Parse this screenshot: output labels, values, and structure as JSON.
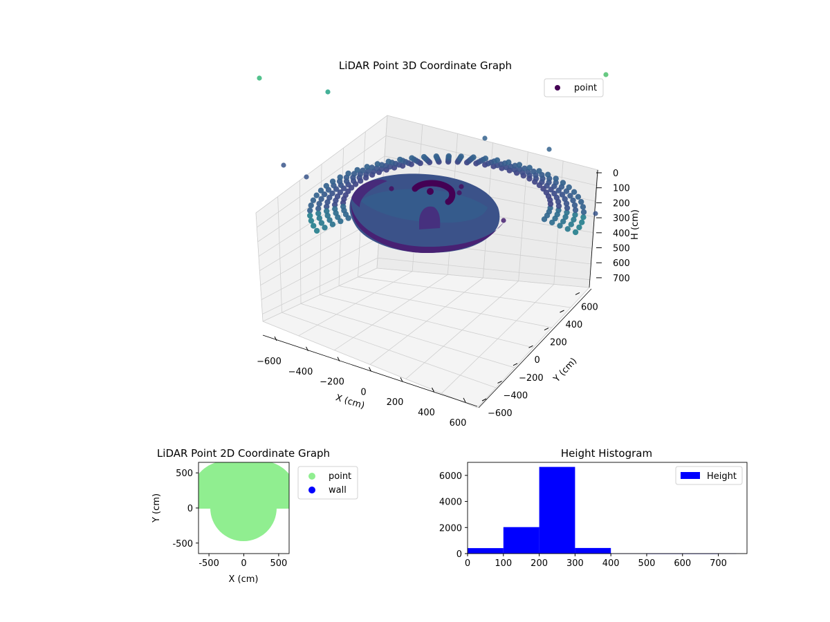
{
  "chart_data": [
    {
      "type": "scatter",
      "projection": "3d",
      "title": "LiDAR Point 3D Coordinate Graph",
      "xlabel": "X (cm)",
      "ylabel": "Y (cm)",
      "zlabel": "H (cm)",
      "xlim": [
        -650,
        650
      ],
      "ylim": [
        -650,
        650
      ],
      "zlim": [
        0,
        750
      ],
      "z_inverted": true,
      "xticks": [
        "−600",
        "−400",
        "−200",
        "0",
        "200",
        "400",
        "600"
      ],
      "yticks": [
        "−600",
        "−400",
        "−200",
        "0",
        "200",
        "400",
        "600"
      ],
      "zticks": [
        "0",
        "100",
        "200",
        "300",
        "400",
        "500",
        "600",
        "700"
      ],
      "grid": true,
      "colormap": "viridis (by height)",
      "legend": {
        "position": "top-right",
        "entries": [
          {
            "label": "point",
            "color": "#440154"
          }
        ]
      },
      "shapes": {
        "outer_ring": {
          "radius": 600,
          "height_range": [
            180,
            300
          ],
          "ring_count": 5,
          "angle_range_deg": [
            -20,
            200
          ]
        },
        "bowl_surface": {
          "radius": 430,
          "height_range": [
            230,
            280
          ]
        },
        "center_arc": {
          "radius": 80,
          "height": 40
        }
      },
      "outliers": [
        {
          "x": -450,
          "y": 550,
          "h": 700
        },
        {
          "x": -250,
          "y": 600,
          "h": 650
        },
        {
          "x": 400,
          "y": 600,
          "h": 700
        },
        {
          "x": 480,
          "y": 300,
          "h": 720
        },
        {
          "x": -620,
          "y": 200,
          "h": 450
        },
        {
          "x": -520,
          "y": 150,
          "h": 400
        },
        {
          "x": 350,
          "y": 550,
          "h": 450
        },
        {
          "x": 500,
          "y": 400,
          "h": 450
        },
        {
          "x": 600,
          "y": -200,
          "h": 300
        },
        {
          "x": 230,
          "y": -200,
          "h": 250
        }
      ]
    },
    {
      "type": "scatter",
      "title": "LiDAR Point 2D Coordinate Graph",
      "xlabel": "X (cm)",
      "ylabel": "Y (cm)",
      "xlim": [
        -650,
        650
      ],
      "ylim": [
        -650,
        650
      ],
      "xticks": [
        -500,
        0,
        500
      ],
      "yticks": [
        -500,
        0,
        500
      ],
      "legend": {
        "position": "outside-right",
        "entries": [
          {
            "label": "point",
            "color": "#90ee90"
          },
          {
            "label": "wall",
            "color": "#0000ff"
          }
        ]
      },
      "point_region": {
        "top_rect_y": [
          0,
          650
        ],
        "top_rect_x": [
          -650,
          650
        ],
        "circle_center": [
          0,
          0
        ],
        "circle_radius": 480
      }
    },
    {
      "type": "bar",
      "subtype": "histogram",
      "title": "Height Histogram",
      "xlabel": "",
      "ylabel": "",
      "bins": [
        [
          0,
          100
        ],
        [
          100,
          200
        ],
        [
          200,
          300
        ],
        [
          300,
          400
        ],
        [
          400,
          500
        ],
        [
          500,
          600
        ],
        [
          600,
          700
        ],
        [
          700,
          750
        ]
      ],
      "values": [
        420,
        2030,
        6650,
        430,
        3,
        2,
        2,
        3
      ],
      "series": [
        {
          "name": "Height",
          "color": "#0000ff"
        }
      ],
      "xlim": [
        0,
        780
      ],
      "ylim": [
        0,
        7000
      ],
      "xticks": [
        0,
        100,
        200,
        300,
        400,
        500,
        600,
        700
      ],
      "yticks": [
        0,
        2000,
        4000,
        6000
      ],
      "legend": {
        "position": "top-right"
      }
    }
  ]
}
